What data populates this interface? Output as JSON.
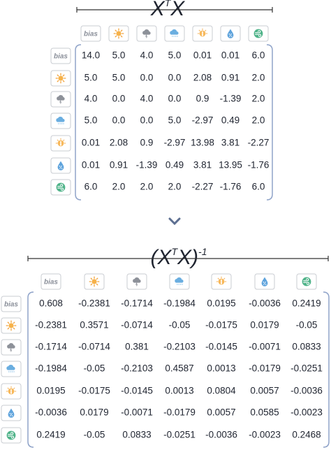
{
  "top": {
    "title": [
      "X",
      "T",
      "X"
    ],
    "col_header": "bias",
    "row_header": "bias",
    "rows": [
      [
        "14.0",
        "5.0",
        "4.0",
        "5.0",
        "0.01",
        "0.01",
        "6.0"
      ],
      [
        "5.0",
        "5.0",
        "0.0",
        "0.0",
        "2.08",
        "0.91",
        "2.0"
      ],
      [
        "4.0",
        "0.0",
        "4.0",
        "0.0",
        "0.9",
        "-1.39",
        "2.0"
      ],
      [
        "5.0",
        "0.0",
        "0.0",
        "5.0",
        "-2.97",
        "0.49",
        "2.0"
      ],
      [
        "0.01",
        "2.08",
        "0.9",
        "-2.97",
        "13.98",
        "3.81",
        "-2.27"
      ],
      [
        "0.01",
        "0.91",
        "-1.39",
        "0.49",
        "3.81",
        "13.95",
        "-1.76"
      ],
      [
        "6.0",
        "2.0",
        "2.0",
        "2.0",
        "-2.27",
        "-1.76",
        "6.0"
      ]
    ]
  },
  "bottom": {
    "title": [
      "(X",
      "T",
      "X)",
      "-1"
    ],
    "col_header": "bias",
    "row_header": "bias",
    "rows": [
      [
        "0.608",
        "-0.2381",
        "-0.1714",
        "-0.1984",
        "0.0195",
        "-0.0036",
        "0.2419"
      ],
      [
        "-0.2381",
        "0.3571",
        "-0.0714",
        "-0.05",
        "-0.0175",
        "0.0179",
        "-0.05"
      ],
      [
        "-0.1714",
        "-0.0714",
        "0.381",
        "-0.2103",
        "-0.0145",
        "-0.0071",
        "0.0833"
      ],
      [
        "-0.1984",
        "-0.05",
        "-0.2103",
        "0.4587",
        "0.0013",
        "-0.0179",
        "-0.0251"
      ],
      [
        "0.0195",
        "-0.0175",
        "-0.0145",
        "0.0013",
        "0.0804",
        "0.0057",
        "-0.0036"
      ],
      [
        "-0.0036",
        "0.0179",
        "-0.0071",
        "-0.0179",
        "0.0057",
        "0.0585",
        "-0.0023"
      ],
      [
        "0.2419",
        "-0.05",
        "0.0833",
        "-0.0251",
        "-0.0036",
        "-0.0023",
        "0.2468"
      ]
    ]
  }
}
